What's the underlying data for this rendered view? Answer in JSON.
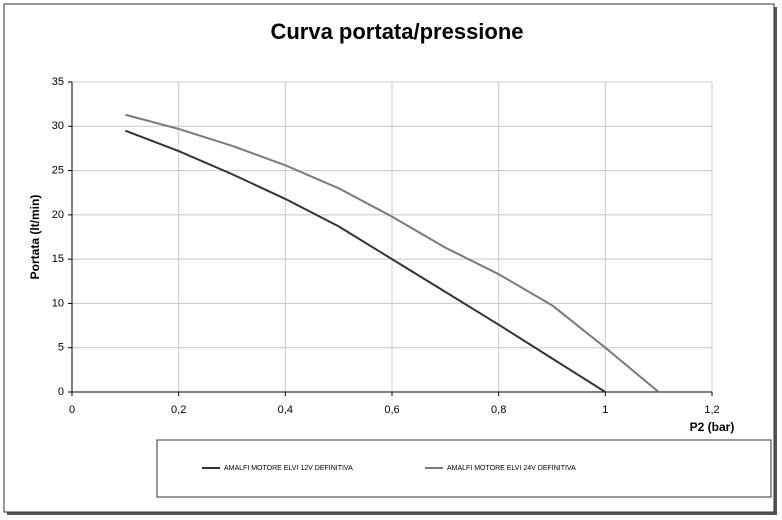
{
  "chart_data": {
    "type": "line",
    "title": "Curva portata/pressione",
    "xlabel": "P2 (bar)",
    "ylabel": "Portata (lt/min)",
    "x": [
      0.1,
      0.2,
      0.3,
      0.4,
      0.5,
      0.6,
      0.7,
      0.8,
      0.9,
      1,
      1.1
    ],
    "series": [
      {
        "name": "AMALFI MOTORE ELVI 12V DEFINITIVA",
        "color": "#333333",
        "values": [
          29.5,
          27.2,
          24.6,
          21.8,
          18.7,
          15,
          11.3,
          7.6,
          3.8,
          0,
          null
        ]
      },
      {
        "name": "AMALFI MOTORE ELVI 24V DEFINITIVA",
        "color": "#7a7a7a",
        "values": [
          31.3,
          29.7,
          27.8,
          25.6,
          23,
          19.8,
          16.3,
          13.3,
          9.8,
          5,
          0
        ]
      }
    ],
    "xlim": [
      0,
      1.2
    ],
    "xticks": [
      0,
      {
        "value": 0.2,
        "label": "0,2"
      },
      {
        "value": 0.4,
        "label": "0,4"
      },
      {
        "value": 0.6,
        "label": "0,6"
      },
      {
        "value": 0.8,
        "label": "0,8"
      },
      1,
      {
        "value": 1.2,
        "label": "1,2"
      }
    ],
    "ylim": [
      0,
      35
    ],
    "yticks": [
      0,
      5,
      10,
      15,
      20,
      25,
      30,
      35
    ],
    "grid": true,
    "legend": "bottom"
  }
}
